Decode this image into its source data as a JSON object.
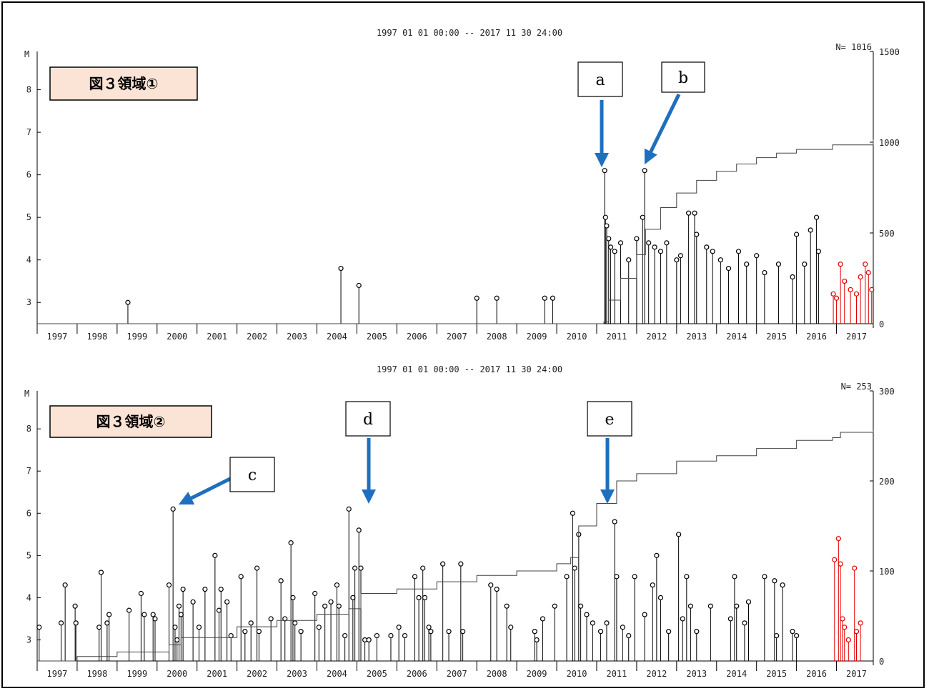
{
  "chart_data": [
    {
      "type": "scatter",
      "subtype": "magnitude-time stem plot with cumulative count",
      "panel_label": "図３領域①",
      "title": "1997 01 01 00:00 -- 2017 11 30 24:00",
      "ylabel": "M",
      "count_label": "N= 1016",
      "ylim": [
        2.5,
        8.9
      ],
      "y2lim": [
        0,
        1500
      ],
      "yticks": [
        3,
        4,
        5,
        6,
        7,
        8
      ],
      "y2ticks": [
        0,
        500,
        1000,
        1500
      ],
      "xlim": [
        1997.0,
        2017.92
      ],
      "categories": [
        "1997",
        "1998",
        "1999",
        "2000",
        "2001",
        "2002",
        "2003",
        "2004",
        "2005",
        "2006",
        "2007",
        "2008",
        "2009",
        "2010",
        "2011",
        "2012",
        "2013",
        "2014",
        "2015",
        "2016",
        "2017"
      ],
      "annotations": [
        {
          "label": "a",
          "target": [
            2011.2,
            6.1
          ],
          "direction": "down"
        },
        {
          "label": "b",
          "target": [
            2012.2,
            6.1
          ],
          "direction": "down-left"
        }
      ],
      "series": [
        {
          "name": "",
          "color": "#000000",
          "points": [
            [
              1999.27,
              3.0
            ],
            [
              2004.6,
              3.8
            ],
            [
              2005.05,
              3.4
            ],
            [
              2008.0,
              3.1
            ],
            [
              2008.5,
              3.1
            ],
            [
              2009.7,
              3.1
            ],
            [
              2009.9,
              3.1
            ],
            [
              2011.2,
              6.1
            ],
            [
              2011.22,
              5.0
            ],
            [
              2011.25,
              4.8
            ],
            [
              2011.3,
              4.5
            ],
            [
              2011.35,
              4.3
            ],
            [
              2011.45,
              4.2
            ],
            [
              2011.6,
              4.4
            ],
            [
              2011.8,
              4.0
            ],
            [
              2012.0,
              4.5
            ],
            [
              2012.15,
              5.0
            ],
            [
              2012.2,
              6.1
            ],
            [
              2012.3,
              4.4
            ],
            [
              2012.45,
              4.3
            ],
            [
              2012.6,
              4.2
            ],
            [
              2012.75,
              4.4
            ],
            [
              2013.0,
              4.0
            ],
            [
              2013.1,
              4.1
            ],
            [
              2013.3,
              5.1
            ],
            [
              2013.45,
              5.1
            ],
            [
              2013.5,
              4.6
            ],
            [
              2013.75,
              4.3
            ],
            [
              2013.9,
              4.2
            ],
            [
              2014.1,
              4.0
            ],
            [
              2014.3,
              3.8
            ],
            [
              2014.55,
              4.2
            ],
            [
              2014.75,
              3.9
            ],
            [
              2015.0,
              4.1
            ],
            [
              2015.2,
              3.7
            ],
            [
              2015.55,
              3.9
            ],
            [
              2015.9,
              3.6
            ],
            [
              2016.0,
              4.6
            ],
            [
              2016.2,
              3.9
            ],
            [
              2016.35,
              4.7
            ],
            [
              2016.5,
              5.0
            ],
            [
              2016.55,
              4.2
            ]
          ]
        },
        {
          "name": "",
          "color": "#e00000",
          "points": [
            [
              2016.92,
              3.2
            ],
            [
              2017.0,
              3.1
            ],
            [
              2017.1,
              3.9
            ],
            [
              2017.2,
              3.5
            ],
            [
              2017.35,
              3.3
            ],
            [
              2017.5,
              3.2
            ],
            [
              2017.6,
              3.6
            ],
            [
              2017.72,
              3.9
            ],
            [
              2017.8,
              3.7
            ],
            [
              2017.88,
              3.3
            ]
          ]
        }
      ],
      "cumulative": [
        [
          1997.0,
          0
        ],
        [
          2011.18,
          10
        ],
        [
          2011.3,
          130
        ],
        [
          2011.6,
          250
        ],
        [
          2012.0,
          380
        ],
        [
          2012.22,
          520
        ],
        [
          2012.6,
          640
        ],
        [
          2013.0,
          720
        ],
        [
          2013.5,
          790
        ],
        [
          2014.0,
          840
        ],
        [
          2014.5,
          880
        ],
        [
          2015.0,
          915
        ],
        [
          2015.5,
          940
        ],
        [
          2016.0,
          960
        ],
        [
          2016.9,
          985
        ],
        [
          2017.92,
          1016
        ]
      ]
    },
    {
      "type": "scatter",
      "subtype": "magnitude-time stem plot with cumulative count",
      "panel_label": "図３領域②",
      "title": "1997 01 01 00:00 -- 2017 11 30 24:00",
      "ylabel": "M",
      "count_label": "N= 253",
      "ylim": [
        2.5,
        8.9
      ],
      "y2lim": [
        0,
        300
      ],
      "yticks": [
        3,
        4,
        5,
        6,
        7,
        8
      ],
      "y2ticks": [
        0,
        100,
        200,
        300
      ],
      "xlim": [
        1997.0,
        2017.92
      ],
      "categories": [
        "1997",
        "1998",
        "1999",
        "2000",
        "2001",
        "2002",
        "2003",
        "2004",
        "2005",
        "2006",
        "2007",
        "2008",
        "2009",
        "2010",
        "2011",
        "2012",
        "2013",
        "2014",
        "2015",
        "2016",
        "2017"
      ],
      "annotations": [
        {
          "label": "c",
          "target": [
            2000.1,
            6.4
          ],
          "direction": "down-left"
        },
        {
          "label": "d",
          "target": [
            2004.8,
            6.4
          ],
          "direction": "down"
        },
        {
          "label": "e",
          "target": [
            2010.9,
            6.4
          ],
          "direction": "down"
        }
      ],
      "series": [
        {
          "name": "",
          "color": "#000000",
          "points": [
            [
              1997.05,
              3.3
            ],
            [
              1997.6,
              3.4
            ],
            [
              1997.7,
              4.3
            ],
            [
              1997.95,
              3.8
            ],
            [
              1997.97,
              3.4
            ],
            [
              1998.55,
              3.3
            ],
            [
              1998.6,
              4.6
            ],
            [
              1998.75,
              3.4
            ],
            [
              1998.8,
              3.6
            ],
            [
              1999.3,
              3.7
            ],
            [
              1999.6,
              4.1
            ],
            [
              1999.68,
              3.6
            ],
            [
              1999.9,
              3.6
            ],
            [
              1999.95,
              3.5
            ],
            [
              2000.3,
              4.3
            ],
            [
              2000.4,
              6.1
            ],
            [
              2000.45,
              3.3
            ],
            [
              2000.5,
              3.0
            ],
            [
              2000.55,
              3.8
            ],
            [
              2000.6,
              3.6
            ],
            [
              2000.65,
              4.2
            ],
            [
              2000.9,
              3.9
            ],
            [
              2001.05,
              3.3
            ],
            [
              2001.2,
              4.2
            ],
            [
              2001.45,
              5.0
            ],
            [
              2001.55,
              3.7
            ],
            [
              2001.6,
              4.2
            ],
            [
              2001.75,
              3.9
            ],
            [
              2001.85,
              3.1
            ],
            [
              2002.1,
              4.5
            ],
            [
              2002.2,
              3.2
            ],
            [
              2002.35,
              3.4
            ],
            [
              2002.5,
              4.7
            ],
            [
              2002.55,
              3.2
            ],
            [
              2002.85,
              3.5
            ],
            [
              2003.1,
              4.4
            ],
            [
              2003.2,
              3.5
            ],
            [
              2003.35,
              5.3
            ],
            [
              2003.4,
              4.0
            ],
            [
              2003.45,
              3.4
            ],
            [
              2003.6,
              3.2
            ],
            [
              2003.95,
              4.1
            ],
            [
              2004.05,
              3.3
            ],
            [
              2004.2,
              3.8
            ],
            [
              2004.35,
              3.9
            ],
            [
              2004.5,
              4.3
            ],
            [
              2004.55,
              3.8
            ],
            [
              2004.7,
              3.1
            ],
            [
              2004.8,
              6.1
            ],
            [
              2004.9,
              4.0
            ],
            [
              2004.95,
              4.7
            ],
            [
              2005.05,
              5.6
            ],
            [
              2005.1,
              4.7
            ],
            [
              2005.2,
              3.0
            ],
            [
              2005.3,
              3.0
            ],
            [
              2005.5,
              3.1
            ],
            [
              2005.85,
              3.1
            ],
            [
              2006.05,
              3.3
            ],
            [
              2006.2,
              3.1
            ],
            [
              2006.45,
              4.5
            ],
            [
              2006.55,
              4.0
            ],
            [
              2006.65,
              4.7
            ],
            [
              2006.7,
              4.0
            ],
            [
              2006.8,
              3.3
            ],
            [
              2006.85,
              3.2
            ],
            [
              2007.15,
              4.8
            ],
            [
              2007.3,
              3.2
            ],
            [
              2007.6,
              4.8
            ],
            [
              2007.65,
              3.2
            ],
            [
              2008.35,
              4.3
            ],
            [
              2008.5,
              4.2
            ],
            [
              2008.75,
              3.8
            ],
            [
              2008.85,
              3.3
            ],
            [
              2009.45,
              3.2
            ],
            [
              2009.5,
              3.0
            ],
            [
              2009.65,
              3.5
            ],
            [
              2009.95,
              3.8
            ],
            [
              2010.25,
              4.5
            ],
            [
              2010.4,
              6.0
            ],
            [
              2010.45,
              4.7
            ],
            [
              2010.55,
              5.5
            ],
            [
              2010.6,
              3.8
            ],
            [
              2010.75,
              3.6
            ],
            [
              2010.9,
              3.4
            ],
            [
              2011.1,
              3.2
            ],
            [
              2011.25,
              3.4
            ],
            [
              2011.45,
              5.8
            ],
            [
              2011.5,
              4.5
            ],
            [
              2011.65,
              3.3
            ],
            [
              2011.8,
              3.1
            ],
            [
              2011.95,
              4.5
            ],
            [
              2012.2,
              3.6
            ],
            [
              2012.4,
              4.3
            ],
            [
              2012.5,
              5.0
            ],
            [
              2012.6,
              4.0
            ],
            [
              2012.8,
              3.2
            ],
            [
              2013.05,
              5.5
            ],
            [
              2013.15,
              3.5
            ],
            [
              2013.25,
              4.5
            ],
            [
              2013.35,
              3.8
            ],
            [
              2013.5,
              3.2
            ],
            [
              2013.85,
              3.8
            ],
            [
              2014.35,
              3.5
            ],
            [
              2014.45,
              4.5
            ],
            [
              2014.5,
              3.8
            ],
            [
              2014.7,
              3.4
            ],
            [
              2014.8,
              3.9
            ],
            [
              2015.2,
              4.5
            ],
            [
              2015.45,
              4.4
            ],
            [
              2015.5,
              3.1
            ],
            [
              2015.65,
              4.3
            ],
            [
              2015.9,
              3.2
            ],
            [
              2016.0,
              3.1
            ]
          ]
        },
        {
          "name": "",
          "color": "#e00000",
          "points": [
            [
              2016.95,
              4.9
            ],
            [
              2017.05,
              5.4
            ],
            [
              2017.1,
              4.8
            ],
            [
              2017.15,
              3.5
            ],
            [
              2017.2,
              3.3
            ],
            [
              2017.3,
              3.0
            ],
            [
              2017.45,
              4.7
            ],
            [
              2017.5,
              3.2
            ],
            [
              2017.6,
              3.4
            ]
          ]
        }
      ],
      "cumulative": [
        [
          1997.0,
          0
        ],
        [
          1998.0,
          5
        ],
        [
          1999.0,
          10
        ],
        [
          2000.3,
          18
        ],
        [
          2000.6,
          26
        ],
        [
          2002.0,
          38
        ],
        [
          2003.0,
          45
        ],
        [
          2004.0,
          52
        ],
        [
          2004.8,
          58
        ],
        [
          2005.1,
          75
        ],
        [
          2006.0,
          80
        ],
        [
          2007.0,
          88
        ],
        [
          2008.0,
          95
        ],
        [
          2009.0,
          100
        ],
        [
          2010.0,
          108
        ],
        [
          2010.35,
          115
        ],
        [
          2010.55,
          150
        ],
        [
          2011.0,
          175
        ],
        [
          2011.5,
          200
        ],
        [
          2012.0,
          208
        ],
        [
          2013.0,
          222
        ],
        [
          2014.0,
          228
        ],
        [
          2015.0,
          236
        ],
        [
          2016.0,
          245
        ],
        [
          2016.9,
          248
        ],
        [
          2017.1,
          254
        ],
        [
          2017.92,
          256
        ]
      ]
    }
  ]
}
